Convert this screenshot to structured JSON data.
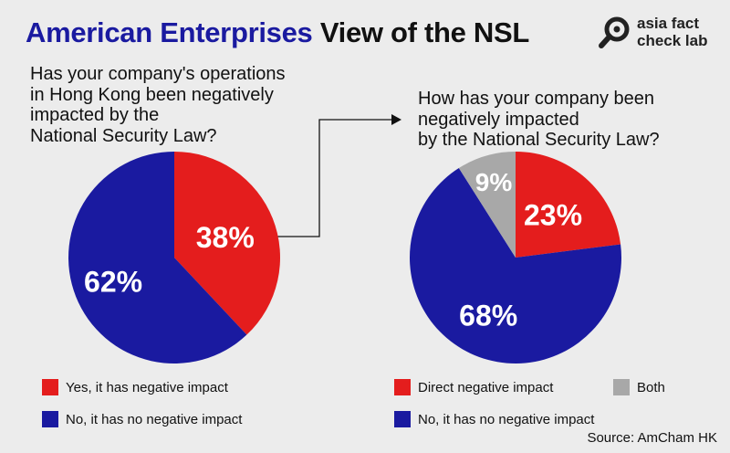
{
  "header": {
    "title_accent": "American Enterprises",
    "title_rest": "View of the NSL",
    "logo_line1": "asia fact",
    "logo_line2": "check lab"
  },
  "colors": {
    "red": "#e41d1d",
    "blue": "#1a1aa0",
    "gray": "#a8a8a8"
  },
  "chart_data": [
    {
      "type": "pie",
      "title": "Has your company's operations\nin Hong Kong been negatively\nimpacted by the\nNational Security Law?",
      "slices": [
        {
          "label": "Yes, it has negative impact",
          "value": 38,
          "display": "38%",
          "color": "#e41d1d"
        },
        {
          "label": "No, it has no negative impact",
          "value": 62,
          "display": "62%",
          "color": "#1a1aa0"
        }
      ]
    },
    {
      "type": "pie",
      "title": "How has your company been\nnegatively impacted\nby the National Security Law?",
      "slices": [
        {
          "label": "Direct negative impact",
          "value": 23,
          "display": "23%",
          "color": "#e41d1d"
        },
        {
          "label": "No, it has no negative impact",
          "value": 68,
          "display": "68%",
          "color": "#1a1aa0"
        },
        {
          "label": "Both",
          "value": 9,
          "display": "9%",
          "color": "#a8a8a8"
        }
      ]
    }
  ],
  "source": "Source: AmCham HK"
}
